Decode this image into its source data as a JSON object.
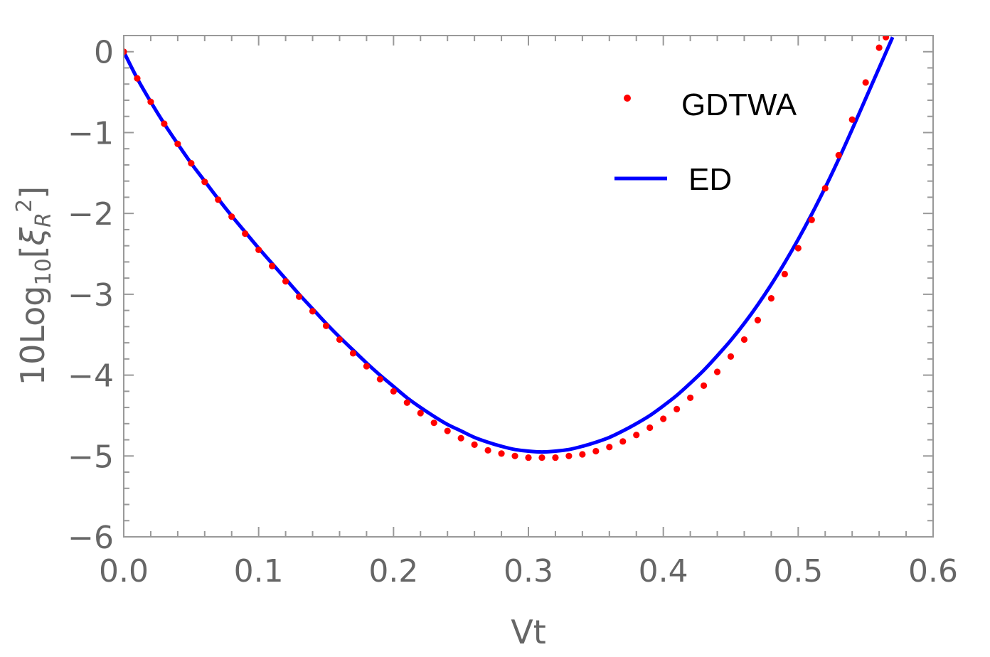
{
  "chart_data": {
    "type": "line",
    "xlabel": "Vt",
    "ylabel": {
      "prefix": "10Log",
      "subscript": "10",
      "open": "[",
      "symbol": "ξ",
      "symbol_subscript": "R",
      "power": "2",
      "close": "]"
    },
    "xlim": [
      0.0,
      0.6
    ],
    "ylim": [
      -6,
      0.2
    ],
    "xticks": [
      0.0,
      0.1,
      0.2,
      0.3,
      0.4,
      0.5,
      0.6
    ],
    "xtick_labels": [
      "0.0",
      "0.1",
      "0.2",
      "0.3",
      "0.4",
      "0.5",
      "0.6"
    ],
    "yticks": [
      0,
      -1,
      -2,
      -3,
      -4,
      -5,
      -6
    ],
    "ytick_labels": [
      "0",
      "−1",
      "−2",
      "−3",
      "−4",
      "−5",
      "−6"
    ],
    "grid": false,
    "legend_position": "top-right",
    "series": [
      {
        "name": "GDTWA",
        "style": "dots",
        "color": "#ff0000",
        "points": [
          [
            0.0,
            0.0
          ],
          [
            0.01,
            -0.33
          ],
          [
            0.02,
            -0.62
          ],
          [
            0.03,
            -0.89
          ],
          [
            0.04,
            -1.14
          ],
          [
            0.05,
            -1.38
          ],
          [
            0.06,
            -1.61
          ],
          [
            0.07,
            -1.83
          ],
          [
            0.08,
            -2.04
          ],
          [
            0.09,
            -2.25
          ],
          [
            0.1,
            -2.45
          ],
          [
            0.11,
            -2.65
          ],
          [
            0.12,
            -2.84
          ],
          [
            0.13,
            -3.03
          ],
          [
            0.14,
            -3.21
          ],
          [
            0.15,
            -3.39
          ],
          [
            0.16,
            -3.56
          ],
          [
            0.17,
            -3.73
          ],
          [
            0.18,
            -3.89
          ],
          [
            0.19,
            -4.05
          ],
          [
            0.2,
            -4.2
          ],
          [
            0.21,
            -4.34
          ],
          [
            0.22,
            -4.47
          ],
          [
            0.23,
            -4.59
          ],
          [
            0.24,
            -4.69
          ],
          [
            0.25,
            -4.78
          ],
          [
            0.26,
            -4.86
          ],
          [
            0.27,
            -4.93
          ],
          [
            0.28,
            -4.97
          ],
          [
            0.29,
            -5.0
          ],
          [
            0.3,
            -5.02
          ],
          [
            0.31,
            -5.02
          ],
          [
            0.32,
            -5.02
          ],
          [
            0.33,
            -5.0
          ],
          [
            0.34,
            -4.98
          ],
          [
            0.35,
            -4.94
          ],
          [
            0.36,
            -4.89
          ],
          [
            0.37,
            -4.82
          ],
          [
            0.38,
            -4.74
          ],
          [
            0.39,
            -4.65
          ],
          [
            0.4,
            -4.54
          ],
          [
            0.41,
            -4.42
          ],
          [
            0.42,
            -4.28
          ],
          [
            0.43,
            -4.13
          ],
          [
            0.44,
            -3.96
          ],
          [
            0.45,
            -3.77
          ],
          [
            0.46,
            -3.56
          ],
          [
            0.47,
            -3.32
          ],
          [
            0.48,
            -3.05
          ],
          [
            0.49,
            -2.75
          ],
          [
            0.5,
            -2.43
          ],
          [
            0.51,
            -2.08
          ],
          [
            0.52,
            -1.69
          ],
          [
            0.53,
            -1.28
          ],
          [
            0.54,
            -0.84
          ],
          [
            0.55,
            -0.38
          ],
          [
            0.56,
            0.05
          ],
          [
            0.565,
            0.18
          ]
        ]
      },
      {
        "name": "ED",
        "style": "line",
        "color": "#0000ff",
        "points": [
          [
            0.0,
            0.0
          ],
          [
            0.01,
            -0.33
          ],
          [
            0.02,
            -0.62
          ],
          [
            0.03,
            -0.89
          ],
          [
            0.04,
            -1.14
          ],
          [
            0.05,
            -1.38
          ],
          [
            0.06,
            -1.6
          ],
          [
            0.07,
            -1.82
          ],
          [
            0.08,
            -2.03
          ],
          [
            0.09,
            -2.23
          ],
          [
            0.1,
            -2.43
          ],
          [
            0.11,
            -2.62
          ],
          [
            0.12,
            -2.81
          ],
          [
            0.13,
            -3.0
          ],
          [
            0.14,
            -3.18
          ],
          [
            0.15,
            -3.36
          ],
          [
            0.16,
            -3.53
          ],
          [
            0.17,
            -3.69
          ],
          [
            0.18,
            -3.85
          ],
          [
            0.19,
            -4.0
          ],
          [
            0.2,
            -4.14
          ],
          [
            0.21,
            -4.28
          ],
          [
            0.22,
            -4.4
          ],
          [
            0.23,
            -4.51
          ],
          [
            0.24,
            -4.61
          ],
          [
            0.25,
            -4.69
          ],
          [
            0.26,
            -4.77
          ],
          [
            0.27,
            -4.83
          ],
          [
            0.28,
            -4.88
          ],
          [
            0.29,
            -4.92
          ],
          [
            0.3,
            -4.94
          ],
          [
            0.31,
            -4.95
          ],
          [
            0.32,
            -4.94
          ],
          [
            0.33,
            -4.92
          ],
          [
            0.34,
            -4.88
          ],
          [
            0.35,
            -4.83
          ],
          [
            0.36,
            -4.77
          ],
          [
            0.37,
            -4.69
          ],
          [
            0.38,
            -4.6
          ],
          [
            0.39,
            -4.5
          ],
          [
            0.4,
            -4.38
          ],
          [
            0.41,
            -4.25
          ],
          [
            0.42,
            -4.1
          ],
          [
            0.43,
            -3.94
          ],
          [
            0.44,
            -3.76
          ],
          [
            0.45,
            -3.57
          ],
          [
            0.46,
            -3.36
          ],
          [
            0.47,
            -3.13
          ],
          [
            0.48,
            -2.88
          ],
          [
            0.49,
            -2.61
          ],
          [
            0.5,
            -2.32
          ],
          [
            0.51,
            -2.01
          ],
          [
            0.52,
            -1.68
          ],
          [
            0.53,
            -1.33
          ],
          [
            0.54,
            -0.96
          ],
          [
            0.55,
            -0.58
          ],
          [
            0.56,
            -0.2
          ],
          [
            0.57,
            0.18
          ]
        ]
      }
    ]
  }
}
